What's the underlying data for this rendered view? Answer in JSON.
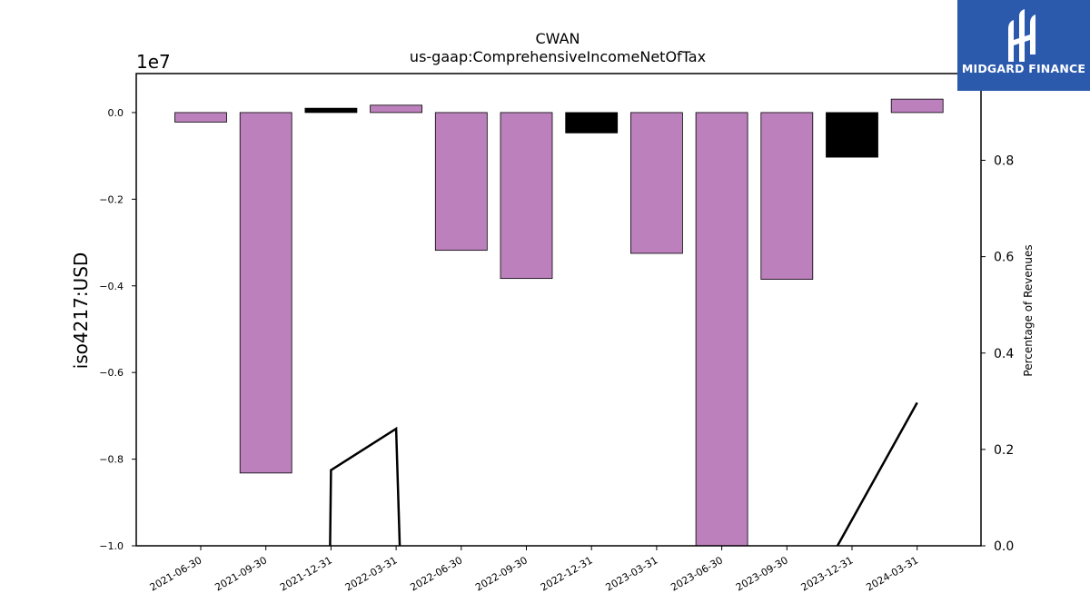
{
  "chart_data": {
    "type": "bar",
    "title": "CWAN",
    "subtitle": "us-gaap:ComprehensiveIncomeNetOfTax",
    "ylabel": "iso4217:USD",
    "y2label": "Percentage of Revenues",
    "offset_text": "1e7",
    "ylim": [
      -10000000,
      900000
    ],
    "y2lim": [
      0,
      0.98
    ],
    "yticks": [
      0,
      -2000000,
      -4000000,
      -6000000,
      -8000000,
      -10000000
    ],
    "ytick_labels": [
      "0.0",
      "−0.2",
      "−0.4",
      "−0.6",
      "−0.8",
      "−1.0"
    ],
    "y2ticks": [
      0,
      0.2,
      0.4,
      0.6,
      0.8
    ],
    "y2tick_labels": [
      "0.0",
      "0.2",
      "0.4",
      "0.6",
      "0.8"
    ],
    "categories": [
      "2021-06-30",
      "2021-09-30",
      "2021-12-31",
      "2022-03-31",
      "2022-06-30",
      "2022-09-30",
      "2022-12-31",
      "2023-03-31",
      "2023-06-30",
      "2023-09-30",
      "2023-12-31",
      "2024-03-31"
    ],
    "values": [
      -220000,
      -8320000,
      100000,
      170000,
      -3180000,
      -3830000,
      -470000,
      -3250000,
      -10000000,
      -3850000,
      -1030000,
      310000
    ],
    "bar_colors": [
      "#bc80bd",
      "#bc80bd",
      "#000000",
      "#bc80bd",
      "#bc80bd",
      "#bc80bd",
      "#000000",
      "#bc80bd",
      "#bc80bd",
      "#bc80bd",
      "#000000",
      "#bc80bd"
    ],
    "line_series": {
      "name": "Percentage of Revenues",
      "color": "#000000",
      "points": [
        {
          "x": "2021-12-31",
          "y": 0.0
        },
        {
          "x": "2021-12-31",
          "y": 0.157
        },
        {
          "x": "2022-03-31",
          "y": 0.243
        },
        {
          "x": "2022-03-31",
          "y": 0.0
        },
        {
          "x": "2023-12-31",
          "y": 0.0
        },
        {
          "x": "2024-03-31",
          "y": 0.297
        }
      ]
    },
    "grid": false,
    "legend": "none"
  },
  "logo": {
    "text": "MIDGARD FINANCE",
    "background": "#2b5aad"
  }
}
